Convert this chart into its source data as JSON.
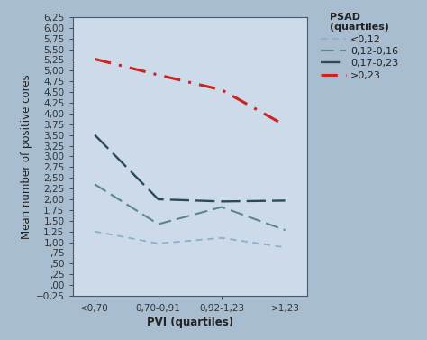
{
  "x_labels": [
    "<0,70",
    "0,70-0,91",
    "0,92-1,23",
    ">1,23"
  ],
  "x_positions": [
    0,
    1,
    2,
    3
  ],
  "series": [
    {
      "label": "<0,12",
      "values": [
        1.25,
        0.97,
        1.1,
        0.88
      ],
      "color": "#8ab0cc",
      "linewidth": 1.3,
      "dash_pattern": [
        4,
        3
      ]
    },
    {
      "label": "0,12-0,16",
      "values": [
        2.35,
        1.42,
        1.82,
        1.28
      ],
      "color": "#5a8888",
      "linewidth": 1.5,
      "dash_pattern": [
        7,
        3
      ]
    },
    {
      "label": "0,17-0,23",
      "values": [
        3.5,
        2.0,
        1.95,
        1.97
      ],
      "color": "#2a4a5a",
      "linewidth": 1.7,
      "dash_pattern": [
        9,
        3
      ]
    },
    {
      "label": ">0,23",
      "values": [
        5.27,
        4.9,
        4.55,
        3.72
      ],
      "color": "#cc2222",
      "linewidth": 2.2,
      "dash_pattern": [
        6,
        3
      ],
      "dot": true
    }
  ],
  "ylabel": "Mean number of positive cores",
  "xlabel": "PVI (quartiles)",
  "legend_title": "PSAD\n(quartiles)",
  "ylim": [
    -0.25,
    6.25
  ],
  "background_color": "#a8bdd0",
  "plot_background_color": "#ccdaea",
  "axis_fontsize": 8.5,
  "tick_fontsize": 7.5,
  "legend_fontsize": 8
}
